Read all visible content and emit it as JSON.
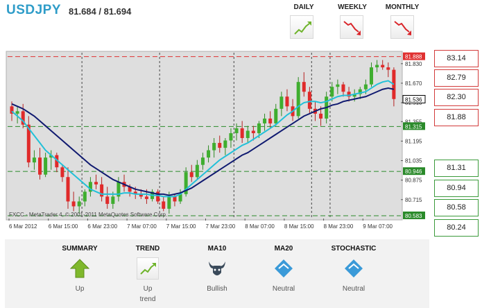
{
  "header": {
    "pair": "USDJPY",
    "quote": "81.684 / 81.694"
  },
  "timeframes": [
    {
      "label": "DAILY",
      "icon": "trend-up-icon",
      "color": "#6fb42c"
    },
    {
      "label": "WEEKLY",
      "icon": "trend-down-icon",
      "color": "#d9252a"
    },
    {
      "label": "MONTHLY",
      "icon": "trend-down-icon",
      "color": "#d9252a"
    }
  ],
  "chart": {
    "price_ticks": [
      "81.830",
      "81.670",
      "81.510",
      "81.355",
      "81.195",
      "81.035",
      "80.875",
      "80.715"
    ],
    "time_ticks": [
      "6 Mar 2012",
      "6 Mar 15:00",
      "6 Mar 23:00",
      "7 Mar 07:00",
      "7 Mar 15:00",
      "7 Mar 23:00",
      "8 Mar 07:00",
      "8 Mar 15:00",
      "8 Mar 23:00",
      "9 Mar 07:00"
    ],
    "copyright": "FXCC - MetaTrader 4, © 2001-2011 MetaQuotes Software Corp.",
    "levels": {
      "resistance": {
        "label": "81.888",
        "value": 81.888,
        "color": "#e03030"
      },
      "current": {
        "label": "81.536",
        "value": 81.536
      },
      "support1": {
        "label": "81.315",
        "value": 81.315,
        "color": "#2a8a2a"
      },
      "support2": {
        "label": "80.946",
        "value": 80.946,
        "color": "#2a8a2a"
      },
      "support3": {
        "label": "80.583",
        "value": 80.583,
        "color": "#2a8a2a"
      }
    },
    "ylim": [
      80.56,
      81.92
    ]
  },
  "pivots": {
    "resistance": [
      "83.14",
      "82.79",
      "82.30",
      "81.88"
    ],
    "support": [
      "81.31",
      "80.94",
      "80.58",
      "80.24"
    ]
  },
  "indicators": [
    {
      "title": "SUMMARY",
      "icon": "arrow-up-icon",
      "value": "Up",
      "value2": ""
    },
    {
      "title": "TREND",
      "icon": "trend-up-icon",
      "value": "Up",
      "value2": "trend"
    },
    {
      "title": "MA10",
      "icon": "bull-icon",
      "value": "Bullish",
      "value2": ""
    },
    {
      "title": "MA20",
      "icon": "neutral-diamond-icon",
      "value": "Neutral",
      "value2": ""
    },
    {
      "title": "STOCHASTIC",
      "icon": "neutral-diamond-icon",
      "value": "Neutral",
      "value2": ""
    }
  ],
  "chart_data": {
    "type": "candlestick",
    "ylim": [
      80.56,
      81.92
    ],
    "candles": [
      [
        81.48,
        81.52,
        81.36,
        81.42
      ],
      [
        81.42,
        81.48,
        81.34,
        81.44
      ],
      [
        81.44,
        81.5,
        81.3,
        81.33
      ],
      [
        81.33,
        81.4,
        80.98,
        81.02
      ],
      [
        81.02,
        81.12,
        80.96,
        81.06
      ],
      [
        81.06,
        81.14,
        80.88,
        80.92
      ],
      [
        80.92,
        81.1,
        80.9,
        81.06
      ],
      [
        81.06,
        81.12,
        80.96,
        81.08
      ],
      [
        81.08,
        81.1,
        80.94,
        80.98
      ],
      [
        80.98,
        81.0,
        80.86,
        80.9
      ],
      [
        80.9,
        80.98,
        80.64,
        80.7
      ],
      [
        80.7,
        80.78,
        80.62,
        80.66
      ],
      [
        80.66,
        80.74,
        80.6,
        80.7
      ],
      [
        80.7,
        80.8,
        80.66,
        80.78
      ],
      [
        80.78,
        80.9,
        80.74,
        80.86
      ],
      [
        80.86,
        80.92,
        80.8,
        80.84
      ],
      [
        80.84,
        80.9,
        80.7,
        80.74
      ],
      [
        80.74,
        80.82,
        80.64,
        80.68
      ],
      [
        80.68,
        80.78,
        80.64,
        80.74
      ],
      [
        80.74,
        80.9,
        80.7,
        80.86
      ],
      [
        80.86,
        80.92,
        80.78,
        80.82
      ],
      [
        80.82,
        80.84,
        80.74,
        80.78
      ],
      [
        80.78,
        80.82,
        80.72,
        80.76
      ],
      [
        80.76,
        80.8,
        80.72,
        80.74
      ],
      [
        80.74,
        80.8,
        80.68,
        80.72
      ],
      [
        80.72,
        80.8,
        80.7,
        80.78
      ],
      [
        80.78,
        80.8,
        80.68,
        80.7
      ],
      [
        80.7,
        80.74,
        80.62,
        80.64
      ],
      [
        80.64,
        80.78,
        80.6,
        80.74
      ],
      [
        80.74,
        80.76,
        80.66,
        80.7
      ],
      [
        80.7,
        80.8,
        80.68,
        80.76
      ],
      [
        80.76,
        80.98,
        80.74,
        80.94
      ],
      [
        80.94,
        81.0,
        80.86,
        80.9
      ],
      [
        80.9,
        81.04,
        80.88,
        81.0
      ],
      [
        81.0,
        81.1,
        80.96,
        81.06
      ],
      [
        81.06,
        81.16,
        81.02,
        81.12
      ],
      [
        81.12,
        81.22,
        81.06,
        81.18
      ],
      [
        81.18,
        81.24,
        81.1,
        81.14
      ],
      [
        81.14,
        81.22,
        81.08,
        81.2
      ],
      [
        81.2,
        81.3,
        81.14,
        81.26
      ],
      [
        81.26,
        81.34,
        81.2,
        81.3
      ],
      [
        81.3,
        81.36,
        81.18,
        81.22
      ],
      [
        81.22,
        81.32,
        81.18,
        81.28
      ],
      [
        81.28,
        81.32,
        81.2,
        81.26
      ],
      [
        81.26,
        81.36,
        81.22,
        81.34
      ],
      [
        81.34,
        81.42,
        81.28,
        81.38
      ],
      [
        81.38,
        81.44,
        81.3,
        81.34
      ],
      [
        81.34,
        81.5,
        81.32,
        81.46
      ],
      [
        81.46,
        81.6,
        81.4,
        81.56
      ],
      [
        81.56,
        81.62,
        81.44,
        81.48
      ],
      [
        81.48,
        81.54,
        81.36,
        81.4
      ],
      [
        81.4,
        81.72,
        81.38,
        81.68
      ],
      [
        81.68,
        81.76,
        81.56,
        81.6
      ],
      [
        81.6,
        81.64,
        81.42,
        81.46
      ],
      [
        81.46,
        81.52,
        81.36,
        81.42
      ],
      [
        81.42,
        81.48,
        81.32,
        81.38
      ],
      [
        81.38,
        81.6,
        81.34,
        81.56
      ],
      [
        81.56,
        81.68,
        81.52,
        81.64
      ],
      [
        81.64,
        81.7,
        81.58,
        81.66
      ],
      [
        81.66,
        81.68,
        81.56,
        81.6
      ],
      [
        81.6,
        81.64,
        81.52,
        81.56
      ],
      [
        81.56,
        81.62,
        81.52,
        81.58
      ],
      [
        81.58,
        81.64,
        81.54,
        81.62
      ],
      [
        81.62,
        81.7,
        81.58,
        81.66
      ],
      [
        81.66,
        81.84,
        81.64,
        81.8
      ],
      [
        81.8,
        81.86,
        81.76,
        81.82
      ],
      [
        81.82,
        81.86,
        81.78,
        81.8
      ],
      [
        81.8,
        81.84,
        81.72,
        81.78
      ],
      [
        81.78,
        81.8,
        81.48,
        81.54
      ]
    ],
    "ma10": [
      81.44,
      81.4,
      81.36,
      81.3,
      81.24,
      81.18,
      81.12,
      81.08,
      81.04,
      81.0,
      80.96,
      80.92,
      80.88,
      80.84,
      80.8,
      80.78,
      80.76,
      80.76,
      80.76,
      80.76,
      80.77,
      80.77,
      80.76,
      80.76,
      80.76,
      80.75,
      80.75,
      80.74,
      80.74,
      80.74,
      80.76,
      80.8,
      80.84,
      80.88,
      80.92,
      80.96,
      81.0,
      81.04,
      81.07,
      81.1,
      81.13,
      81.16,
      81.18,
      81.21,
      81.24,
      81.27,
      81.3,
      81.33,
      81.37,
      81.41,
      81.44,
      81.48,
      81.51,
      81.52,
      81.52,
      81.51,
      81.52,
      81.54,
      81.56,
      81.57,
      81.57,
      81.58,
      81.59,
      81.6,
      81.63,
      81.66,
      81.68,
      81.69,
      81.66
    ],
    "ma20": [
      81.5,
      81.48,
      81.46,
      81.43,
      81.4,
      81.36,
      81.32,
      81.28,
      81.24,
      81.2,
      81.16,
      81.12,
      81.08,
      81.04,
      81.0,
      80.97,
      80.94,
      80.91,
      80.88,
      80.86,
      80.84,
      80.82,
      80.8,
      80.79,
      80.78,
      80.77,
      80.76,
      80.76,
      80.75,
      80.76,
      80.77,
      80.79,
      80.81,
      80.84,
      80.87,
      80.9,
      80.93,
      80.96,
      80.99,
      81.02,
      81.05,
      81.08,
      81.1,
      81.13,
      81.16,
      81.19,
      81.22,
      81.25,
      81.28,
      81.31,
      81.34,
      81.37,
      81.4,
      81.42,
      81.44,
      81.46,
      81.47,
      81.49,
      81.5,
      81.52,
      81.53,
      81.54,
      81.55,
      81.56,
      81.58,
      81.6,
      81.62,
      81.63,
      81.62
    ]
  }
}
